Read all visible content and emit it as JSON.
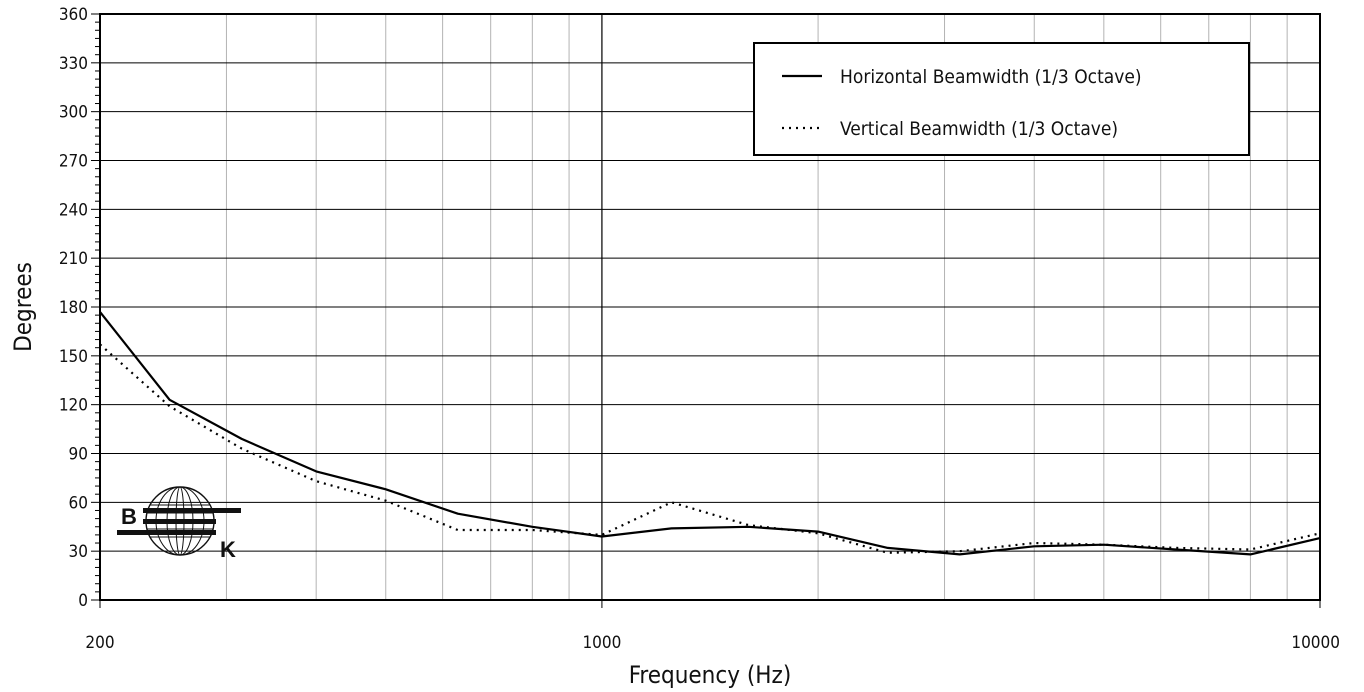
{
  "chart_data": {
    "type": "line",
    "title": "",
    "xlabel": "Frequency (Hz)",
    "ylabel": "Degrees",
    "x_scale": "log",
    "xlim": [
      200,
      10000
    ],
    "ylim": [
      0,
      360
    ],
    "x_tick_labels": [
      "200",
      "1000",
      "10000"
    ],
    "y_tick_labels": [
      "0",
      "30",
      "60",
      "90",
      "120",
      "150",
      "180",
      "210",
      "240",
      "270",
      "300",
      "330",
      "360"
    ],
    "grid": true,
    "legend_position": "top-right",
    "series": [
      {
        "name": "Horizontal Beamwidth (1/3 Octave)",
        "line_style": "solid",
        "x": [
          200,
          250,
          315,
          400,
          500,
          630,
          800,
          1000,
          1250,
          1600,
          2000,
          2500,
          3150,
          4000,
          5000,
          6300,
          8000,
          10000
        ],
        "y": [
          177,
          123,
          99,
          79,
          68,
          53,
          45,
          39,
          44,
          45,
          42,
          32,
          28,
          33,
          34,
          31,
          28,
          38
        ]
      },
      {
        "name": "Vertical Beamwidth (1/3 Octave)",
        "line_style": "dotted",
        "x": [
          200,
          250,
          315,
          400,
          500,
          630,
          800,
          1000,
          1250,
          1600,
          2000,
          2500,
          3150,
          4000,
          5000,
          6300,
          8000,
          10000
        ],
        "y": [
          157,
          119,
          93,
          73,
          61,
          43,
          43,
          40,
          60,
          46,
          41,
          29,
          30,
          35,
          34,
          32,
          31,
          41
        ]
      }
    ]
  },
  "logo": {
    "letter_top": "B",
    "letter_bottom": "K"
  }
}
